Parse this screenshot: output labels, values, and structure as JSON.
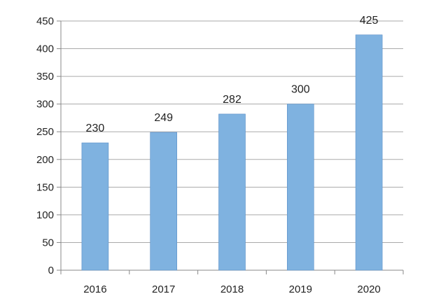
{
  "chart_data": {
    "type": "bar",
    "title": "",
    "xlabel": "",
    "ylabel": "",
    "categories": [
      "2016",
      "2017",
      "2018",
      "2019",
      "2020"
    ],
    "values": [
      230,
      249,
      282,
      300,
      425
    ],
    "data_labels": [
      "230",
      "249",
      "282",
      "300",
      "425"
    ],
    "ylim": [
      0,
      450
    ],
    "yticks": [
      0,
      50,
      100,
      150,
      200,
      250,
      300,
      350,
      400,
      450
    ],
    "ytick_labels": [
      "0",
      "50",
      "100",
      "150",
      "200",
      "250",
      "300",
      "350",
      "400",
      "450"
    ],
    "grid": true,
    "legend": "none",
    "colors": {
      "bar": "#7fb2e0",
      "bar_edge": "#5b8fc7",
      "grid": "#aaaaaa",
      "axis": "#888888",
      "text": "#222222"
    }
  }
}
